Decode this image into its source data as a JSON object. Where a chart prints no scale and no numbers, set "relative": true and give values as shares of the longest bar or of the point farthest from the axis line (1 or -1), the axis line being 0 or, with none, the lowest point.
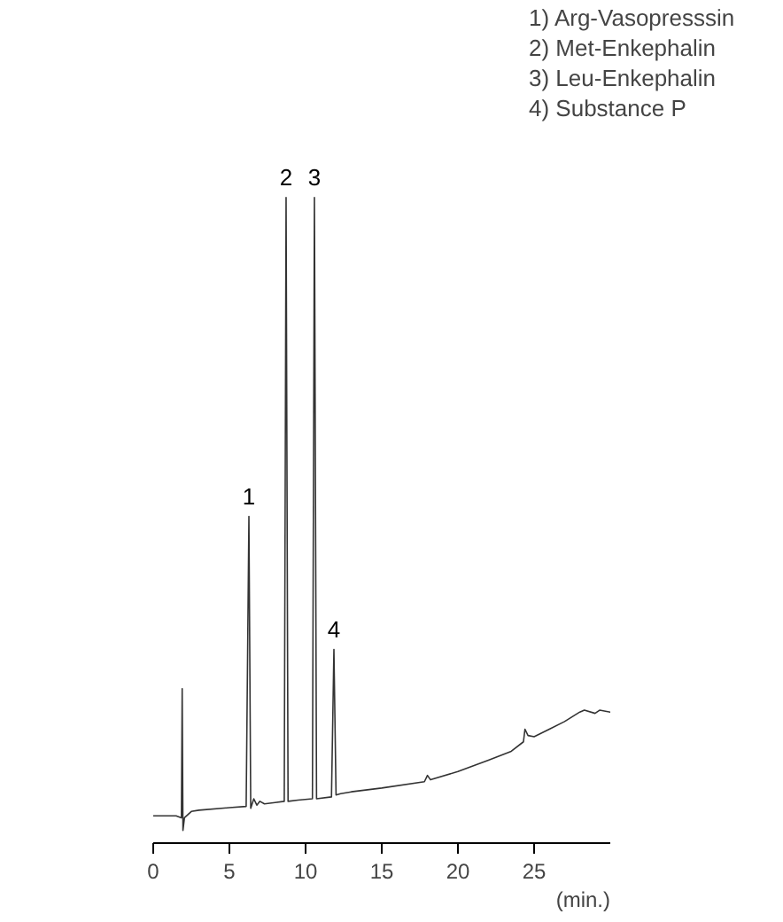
{
  "chart_data": {
    "type": "line",
    "relative": true,
    "xlabel": "(min.)",
    "xlim": [
      0,
      30
    ],
    "xticks": [
      0,
      5,
      10,
      15,
      20,
      25
    ],
    "grid": false,
    "marker": "none",
    "line_style": "solid",
    "x": [
      0,
      1.5,
      1.85,
      1.9,
      1.95,
      2.05,
      2.5,
      3,
      5,
      6.1,
      6.28,
      6.4,
      6.6,
      6.8,
      7.0,
      7.3,
      8.0,
      8.6,
      8.72,
      8.85,
      9.5,
      10.45,
      10.58,
      10.72,
      11.7,
      11.86,
      12.0,
      12.3,
      13,
      15,
      17.8,
      18.0,
      18.2,
      20,
      22,
      23.5,
      24.3,
      24.4,
      24.6,
      25,
      26,
      27,
      28,
      28.3,
      29,
      29.3,
      30
    ],
    "series": [
      {
        "color": "#333333",
        "values": [
          0.023,
          0.023,
          0.02,
          0.224,
          0.0,
          0.02,
          0.03,
          0.032,
          0.036,
          0.038,
          0.496,
          0.035,
          0.05,
          0.04,
          0.046,
          0.042,
          0.044,
          0.046,
          1.0,
          0.046,
          0.048,
          0.05,
          1.0,
          0.05,
          0.053,
          0.286,
          0.056,
          0.058,
          0.061,
          0.067,
          0.077,
          0.087,
          0.08,
          0.093,
          0.111,
          0.125,
          0.14,
          0.16,
          0.15,
          0.148,
          0.16,
          0.172,
          0.187,
          0.19,
          0.185,
          0.19,
          0.187
        ]
      }
    ],
    "annotations": [
      {
        "text": "1",
        "x": 6.28,
        "y": 0.496
      },
      {
        "text": "2",
        "x": 8.72,
        "y": 1.0
      },
      {
        "text": "3",
        "x": 10.58,
        "y": 1.0
      },
      {
        "text": "4",
        "x": 11.86,
        "y": 0.286
      },
      "1) Arg-Vasopresssin",
      "2) Met-Enkephalin",
      "3) Leu-Enkephalin",
      "4) Substance P"
    ]
  }
}
